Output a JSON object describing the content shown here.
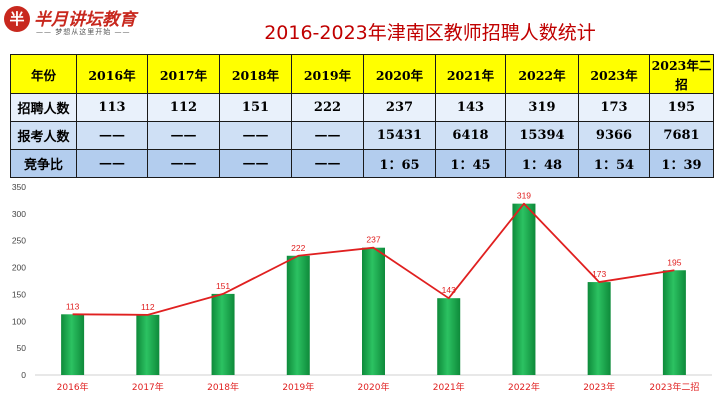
{
  "brand": {
    "logo_mark": "半",
    "name": "半月讲坛教育",
    "slogan": "—— 梦想从这里开始 ——"
  },
  "title": "2016-2023年津南区教师招聘人数统计",
  "table": {
    "header": [
      "年份",
      "2016年",
      "2017年",
      "2018年",
      "2019年",
      "2020年",
      "2021年",
      "2022年",
      "2023年",
      "2023年二招"
    ],
    "rows": [
      {
        "label": "招聘人数",
        "cells": [
          "113",
          "112",
          "151",
          "222",
          "237",
          "143",
          "319",
          "173",
          "195"
        ]
      },
      {
        "label": "报考人数",
        "cells": [
          "——",
          "——",
          "——",
          "——",
          "15431",
          "6418",
          "15394",
          "9366",
          "7681"
        ]
      },
      {
        "label": "竞争比",
        "cells": [
          "——",
          "——",
          "——",
          "——",
          "1：65",
          "1：45",
          "1：48",
          "1：54",
          "1：39"
        ]
      }
    ]
  },
  "chart_data": {
    "type": "bar",
    "categories": [
      "2016年",
      "2017年",
      "2018年",
      "2019年",
      "2020年",
      "2021年",
      "2022年",
      "2023年",
      "2023年二招"
    ],
    "series": [
      {
        "values": [
          113,
          112,
          151,
          222,
          237,
          143,
          319,
          173,
          195
        ],
        "render": "bar",
        "color": "#1aa84a"
      },
      {
        "values": [
          113,
          112,
          151,
          222,
          237,
          143,
          319,
          173,
          195
        ],
        "render": "line",
        "color": "#e02020"
      }
    ],
    "data_labels": [
      "113",
      "112",
      "151",
      "222",
      "237",
      "143",
      "319",
      "173",
      "195"
    ],
    "yticks": [
      "0",
      "50",
      "100",
      "150",
      "200",
      "250",
      "300",
      "350"
    ],
    "ylim": [
      0,
      350
    ],
    "grid": false,
    "title": "",
    "xlabel": "",
    "ylabel": ""
  }
}
